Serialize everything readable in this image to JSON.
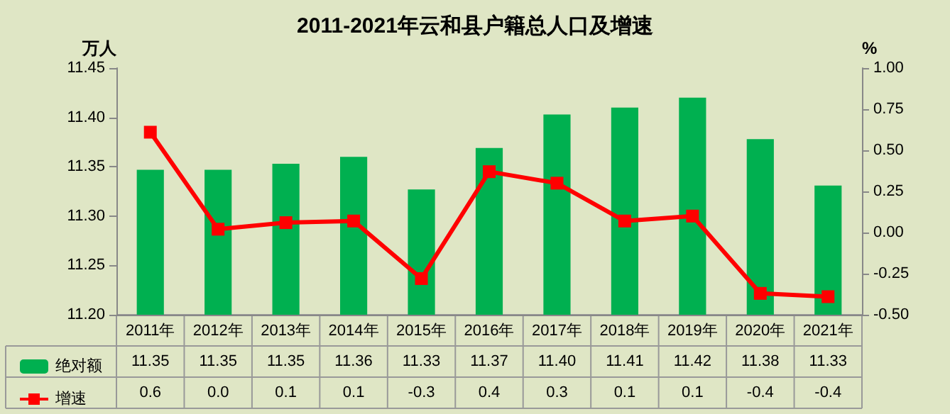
{
  "chart_data": {
    "type": "bar",
    "title": "2011-2021年云和县户籍总人口及增速",
    "ylabel": "万人",
    "y2label": "%",
    "categories": [
      "2011年",
      "2012年",
      "2013年",
      "2014年",
      "2015年",
      "2016年",
      "2017年",
      "2018年",
      "2019年",
      "2020年",
      "2021年"
    ],
    "series": [
      {
        "name": "绝对额",
        "color": "#00b050",
        "values": [
          11.347,
          11.347,
          11.353,
          11.36,
          11.327,
          11.369,
          11.403,
          11.41,
          11.42,
          11.378,
          11.331
        ],
        "value_labels": [
          "11.35",
          "11.35",
          "11.35",
          "11.36",
          "11.33",
          "11.37",
          "11.40",
          "11.41",
          "11.42",
          "11.38",
          "11.33"
        ]
      },
      {
        "name": "增速",
        "type": "line",
        "axis": "y2",
        "color": "#ff0000",
        "marker": "square",
        "values": [
          0.61,
          0.02,
          0.06,
          0.07,
          -0.28,
          0.37,
          0.3,
          0.07,
          0.1,
          -0.37,
          -0.39
        ],
        "value_labels": [
          "0.6",
          "0.0",
          "0.1",
          "0.1",
          "-0.3",
          "0.4",
          "0.3",
          "0.1",
          "0.1",
          "-0.4",
          "-0.4"
        ]
      }
    ],
    "ylim": [
      11.2,
      11.45
    ],
    "yticks": [
      {
        "value": 11.2,
        "label": "11.20"
      },
      {
        "value": 11.25,
        "label": "11.25"
      },
      {
        "value": 11.3,
        "label": "11.30"
      },
      {
        "value": 11.35,
        "label": "11.35"
      },
      {
        "value": 11.4,
        "label": "11.40"
      },
      {
        "value": 11.45,
        "label": "11.45"
      }
    ],
    "y2lim": [
      -0.5,
      1.0
    ],
    "y2ticks": [
      {
        "value": -0.5,
        "label": "-0.50"
      },
      {
        "value": -0.25,
        "label": "-0.25"
      },
      {
        "value": 0,
        "label": "0.00"
      },
      {
        "value": 0.25,
        "label": "0.25"
      },
      {
        "value": 0.5,
        "label": "0.50"
      },
      {
        "value": 0.75,
        "label": "0.75"
      },
      {
        "value": 1.0,
        "label": "1.00"
      }
    ],
    "legend": "bottom left"
  }
}
